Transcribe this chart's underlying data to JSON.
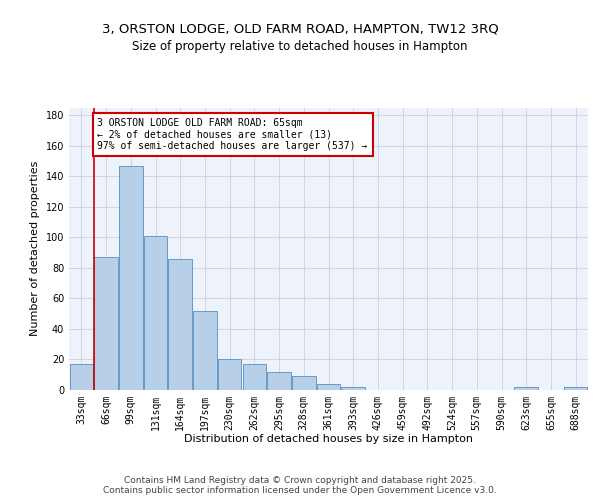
{
  "title_line1": "3, ORSTON LODGE, OLD FARM ROAD, HAMPTON, TW12 3RQ",
  "title_line2": "Size of property relative to detached houses in Hampton",
  "xlabel": "Distribution of detached houses by size in Hampton",
  "ylabel": "Number of detached properties",
  "categories": [
    "33sqm",
    "66sqm",
    "99sqm",
    "131sqm",
    "164sqm",
    "197sqm",
    "230sqm",
    "262sqm",
    "295sqm",
    "328sqm",
    "361sqm",
    "393sqm",
    "426sqm",
    "459sqm",
    "492sqm",
    "524sqm",
    "557sqm",
    "590sqm",
    "623sqm",
    "655sqm",
    "688sqm"
  ],
  "values": [
    17,
    87,
    147,
    101,
    86,
    52,
    20,
    17,
    12,
    9,
    4,
    2,
    0,
    0,
    0,
    0,
    0,
    0,
    2,
    0,
    2
  ],
  "bar_color": "#b8cfe8",
  "bar_edge_color": "#6699cc",
  "background_color": "#eef2fb",
  "grid_color": "#c8d0e0",
  "vline_color": "#cc0000",
  "vline_x": 0.5,
  "annotation_text": "3 ORSTON LODGE OLD FARM ROAD: 65sqm\n← 2% of detached houses are smaller (13)\n97% of semi-detached houses are larger (537) →",
  "annotation_box_color": "#ffffff",
  "annotation_box_edge": "#cc0000",
  "ylim": [
    0,
    185
  ],
  "yticks": [
    0,
    20,
    40,
    60,
    80,
    100,
    120,
    140,
    160,
    180
  ],
  "footer_text": "Contains HM Land Registry data © Crown copyright and database right 2025.\nContains public sector information licensed under the Open Government Licence v3.0.",
  "title_fontsize": 9.5,
  "subtitle_fontsize": 8.5,
  "axis_label_fontsize": 8,
  "tick_fontsize": 7,
  "annotation_fontsize": 7,
  "footer_fontsize": 6.5
}
